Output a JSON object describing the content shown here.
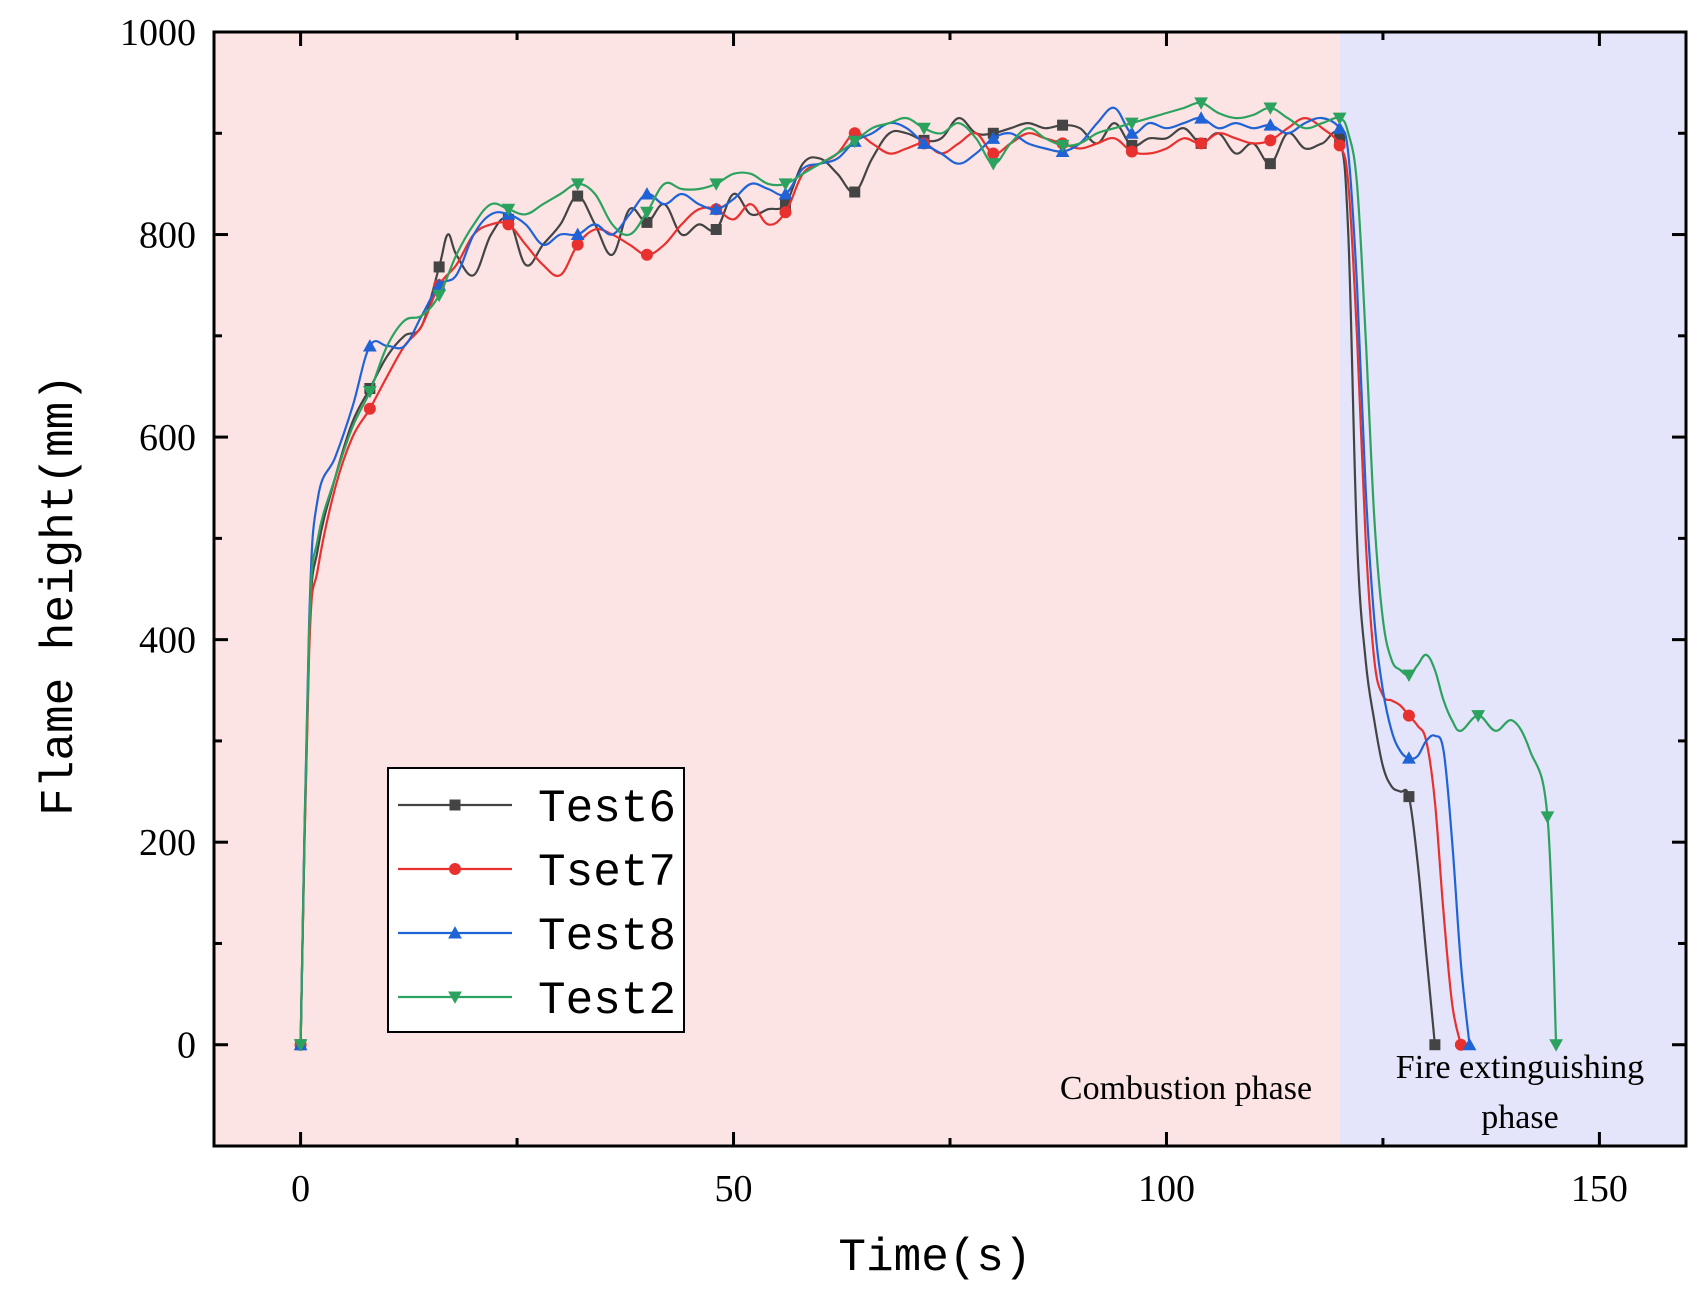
{
  "chart_data": {
    "type": "line",
    "title": "",
    "xlabel": "Time(s)",
    "ylabel": "Flame height(mm)",
    "xlim": [
      -10,
      160
    ],
    "ylim": [
      -100,
      1000
    ],
    "xticks": [
      0,
      50,
      100,
      150
    ],
    "yticks": [
      0,
      200,
      400,
      600,
      800,
      1000
    ],
    "grid": false,
    "legend_position": "bottom-left",
    "regions": [
      {
        "label": "Combustion phase",
        "x_start": -10,
        "x_end": 120,
        "color": "#fde4e4"
      },
      {
        "label": "Fire extinguishing phase",
        "label_lines": [
          "Fire extinguishing",
          "phase"
        ],
        "x_start": 120,
        "x_end": 160,
        "color": "#e4e4fa"
      }
    ],
    "series": [
      {
        "name": "Test6",
        "color": "#444444",
        "marker": "square",
        "x": [
          0,
          1,
          2,
          4,
          6,
          8,
          10,
          12,
          14,
          16,
          17,
          18,
          20,
          22,
          24,
          26,
          28,
          30,
          32,
          34,
          36,
          38,
          40,
          42,
          44,
          46,
          48,
          50,
          52,
          54,
          56,
          58,
          60,
          62,
          64,
          66,
          68,
          70,
          72,
          74,
          76,
          78,
          80,
          82,
          84,
          86,
          88,
          90,
          92,
          94,
          96,
          98,
          100,
          102,
          104,
          106,
          108,
          110,
          112,
          114,
          116,
          118,
          120,
          121,
          122,
          123,
          124,
          125,
          126,
          127,
          128,
          129,
          130,
          131
        ],
        "y": [
          0,
          400,
          490,
          560,
          615,
          648,
          680,
          700,
          710,
          768,
          800,
          780,
          760,
          800,
          815,
          770,
          790,
          810,
          838,
          810,
          780,
          825,
          812,
          830,
          800,
          810,
          805,
          840,
          820,
          825,
          830,
          870,
          875,
          860,
          842,
          875,
          900,
          900,
          893,
          895,
          915,
          900,
          900,
          905,
          910,
          905,
          908,
          905,
          890,
          910,
          888,
          895,
          895,
          905,
          890,
          900,
          880,
          890,
          870,
          900,
          885,
          890,
          895,
          800,
          500,
          380,
          320,
          275,
          255,
          250,
          245,
          180,
          90,
          0
        ],
        "marker_x": [
          0,
          8,
          16,
          24,
          32,
          40,
          48,
          56,
          64,
          72,
          80,
          88,
          96,
          104,
          112,
          120,
          128,
          131
        ],
        "marker_y": [
          0,
          648,
          768,
          815,
          838,
          812,
          805,
          830,
          842,
          893,
          900,
          908,
          888,
          890,
          870,
          895,
          245,
          0
        ]
      },
      {
        "name": "Tset7",
        "color": "#e8312f",
        "marker": "circle",
        "x": [
          0,
          1,
          2,
          4,
          6,
          8,
          10,
          12,
          14,
          16,
          18,
          20,
          22,
          24,
          26,
          28,
          30,
          32,
          34,
          36,
          38,
          40,
          42,
          44,
          46,
          48,
          50,
          52,
          54,
          56,
          58,
          60,
          62,
          64,
          66,
          68,
          70,
          72,
          74,
          76,
          78,
          80,
          82,
          84,
          86,
          88,
          90,
          92,
          94,
          96,
          98,
          100,
          102,
          104,
          106,
          108,
          110,
          112,
          114,
          116,
          118,
          120,
          121,
          122,
          123,
          124,
          125,
          126,
          127,
          128,
          129,
          130,
          131,
          132,
          133,
          134
        ],
        "y": [
          0,
          390,
          470,
          550,
          600,
          628,
          660,
          690,
          710,
          750,
          770,
          800,
          810,
          810,
          790,
          770,
          760,
          790,
          805,
          800,
          790,
          780,
          790,
          810,
          825,
          825,
          815,
          830,
          810,
          822,
          860,
          870,
          880,
          900,
          890,
          880,
          885,
          890,
          880,
          890,
          900,
          880,
          890,
          900,
          895,
          890,
          885,
          890,
          895,
          882,
          880,
          885,
          895,
          890,
          900,
          895,
          890,
          893,
          905,
          915,
          905,
          888,
          850,
          700,
          500,
          380,
          345,
          340,
          335,
          325,
          315,
          300,
          240,
          130,
          40,
          0
        ],
        "marker_x": [
          0,
          8,
          16,
          24,
          32,
          40,
          48,
          56,
          64,
          72,
          80,
          88,
          96,
          104,
          112,
          120,
          128,
          134
        ],
        "marker_y": [
          0,
          628,
          750,
          810,
          790,
          780,
          825,
          822,
          900,
          890,
          880,
          890,
          882,
          890,
          893,
          888,
          325,
          0
        ]
      },
      {
        "name": "Test8",
        "color": "#1f63d6",
        "marker": "triangle-up",
        "x": [
          0,
          1,
          2,
          4,
          6,
          8,
          10,
          12,
          14,
          16,
          18,
          20,
          22,
          24,
          26,
          28,
          30,
          32,
          34,
          36,
          38,
          40,
          42,
          44,
          46,
          48,
          50,
          52,
          54,
          56,
          58,
          60,
          62,
          64,
          66,
          68,
          70,
          72,
          74,
          76,
          78,
          80,
          82,
          84,
          86,
          88,
          90,
          92,
          94,
          96,
          98,
          100,
          102,
          104,
          106,
          108,
          110,
          112,
          114,
          116,
          118,
          120,
          121,
          122,
          123,
          124,
          125,
          126,
          127,
          128,
          129,
          130,
          131,
          132,
          133,
          134,
          135
        ],
        "y": [
          0,
          420,
          540,
          580,
          630,
          690,
          690,
          690,
          720,
          750,
          760,
          800,
          820,
          820,
          810,
          790,
          800,
          800,
          810,
          800,
          820,
          840,
          830,
          840,
          830,
          825,
          835,
          850,
          845,
          840,
          865,
          870,
          875,
          892,
          900,
          910,
          905,
          890,
          880,
          870,
          880,
          895,
          900,
          890,
          885,
          882,
          890,
          910,
          925,
          900,
          910,
          905,
          910,
          915,
          905,
          910,
          905,
          908,
          900,
          910,
          915,
          905,
          880,
          750,
          550,
          420,
          350,
          310,
          290,
          283,
          285,
          300,
          305,
          290,
          200,
          80,
          0
        ],
        "marker_x": [
          0,
          8,
          16,
          24,
          32,
          40,
          48,
          56,
          64,
          72,
          80,
          88,
          96,
          104,
          112,
          120,
          128,
          135
        ],
        "marker_y": [
          0,
          690,
          750,
          820,
          800,
          840,
          825,
          840,
          892,
          890,
          895,
          882,
          900,
          915,
          908,
          905,
          283,
          0
        ]
      },
      {
        "name": "Test2",
        "color": "#2ca25f",
        "marker": "triangle-down",
        "x": [
          0,
          1,
          2,
          4,
          6,
          8,
          10,
          12,
          14,
          16,
          18,
          20,
          22,
          24,
          26,
          28,
          30,
          32,
          34,
          36,
          38,
          40,
          42,
          44,
          46,
          48,
          50,
          52,
          54,
          56,
          58,
          60,
          62,
          64,
          66,
          68,
          70,
          72,
          74,
          76,
          78,
          80,
          82,
          84,
          86,
          88,
          90,
          92,
          94,
          96,
          98,
          100,
          102,
          104,
          106,
          108,
          110,
          112,
          114,
          116,
          118,
          120,
          121,
          122,
          123,
          124,
          125,
          126,
          127,
          128,
          129,
          130,
          131,
          132,
          133,
          134,
          136,
          138,
          140,
          142,
          144,
          145
        ],
        "y": [
          0,
          410,
          500,
          560,
          610,
          645,
          690,
          715,
          720,
          740,
          780,
          810,
          830,
          825,
          820,
          830,
          840,
          850,
          840,
          810,
          800,
          822,
          850,
          845,
          845,
          850,
          860,
          860,
          850,
          850,
          860,
          870,
          880,
          892,
          905,
          910,
          915,
          905,
          900,
          910,
          895,
          870,
          890,
          905,
          895,
          888,
          890,
          900,
          905,
          910,
          915,
          920,
          925,
          930,
          920,
          915,
          918,
          925,
          915,
          905,
          910,
          915,
          900,
          850,
          700,
          520,
          420,
          380,
          370,
          365,
          375,
          385,
          370,
          340,
          320,
          310,
          325,
          310,
          320,
          290,
          225,
          0
        ],
        "marker_x": [
          0,
          8,
          16,
          24,
          32,
          40,
          48,
          56,
          64,
          72,
          80,
          88,
          96,
          104,
          112,
          120,
          128,
          136,
          144,
          145
        ],
        "marker_y": [
          0,
          645,
          740,
          825,
          850,
          822,
          850,
          850,
          892,
          905,
          870,
          888,
          910,
          930,
          925,
          915,
          365,
          325,
          225,
          0
        ]
      }
    ]
  }
}
